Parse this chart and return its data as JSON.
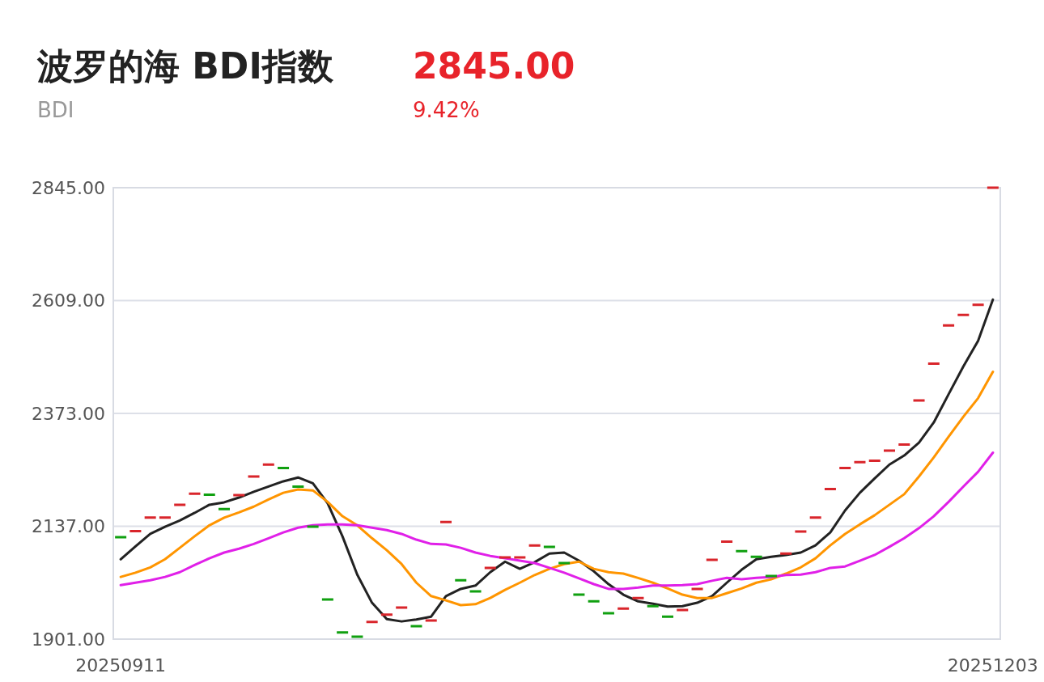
{
  "chart_data": {
    "type": "candlestick",
    "title": "波罗的海 BDI指数",
    "subtitle": "BDI",
    "annotations": [
      "2845.00",
      "9.42%"
    ],
    "categories": [
      "20250911",
      null,
      null,
      null,
      null,
      null,
      null,
      null,
      null,
      null,
      null,
      null,
      null,
      null,
      null,
      null,
      null,
      null,
      null,
      null,
      null,
      null,
      null,
      null,
      null,
      null,
      null,
      null,
      null,
      null,
      null,
      null,
      null,
      null,
      null,
      null,
      null,
      null,
      null,
      null,
      null,
      null,
      null,
      null,
      null,
      null,
      null,
      null,
      null,
      null,
      null,
      null,
      null,
      null,
      null,
      null,
      null,
      null,
      null,
      "20251203"
    ],
    "ohlc": [
      [
        2114,
        2114,
        2114,
        2114
      ],
      [
        2127,
        2127,
        2127,
        2127
      ],
      [
        2155,
        2155,
        2155,
        2155
      ],
      [
        2155,
        2155,
        2155,
        2155
      ],
      [
        2182,
        2182,
        2182,
        2182
      ],
      [
        2205,
        2205,
        2205,
        2205
      ],
      [
        2203,
        2203,
        2203,
        2203
      ],
      [
        2173,
        2173,
        2173,
        2173
      ],
      [
        2202,
        2202,
        2202,
        2202
      ],
      [
        2241,
        2241,
        2241,
        2241
      ],
      [
        2266,
        2266,
        2266,
        2266
      ],
      [
        2259,
        2259,
        2259,
        2259
      ],
      [
        2220,
        2220,
        2220,
        2220
      ],
      [
        2136,
        2136,
        2136,
        2136
      ],
      [
        1984,
        1984,
        1984,
        1984
      ],
      [
        1915,
        1915,
        1915,
        1915
      ],
      [
        1906,
        1906,
        1906,
        1906
      ],
      [
        1937,
        1937,
        1937,
        1937
      ],
      [
        1952,
        1952,
        1952,
        1952
      ],
      [
        1967,
        1967,
        1967,
        1967
      ],
      [
        1928,
        1928,
        1928,
        1928
      ],
      [
        1940,
        1940,
        1940,
        1940
      ],
      [
        2146,
        2146,
        2146,
        2146
      ],
      [
        2024,
        2024,
        2024,
        2024
      ],
      [
        2001,
        2001,
        2001,
        2001
      ],
      [
        2050,
        2050,
        2050,
        2050
      ],
      [
        2072,
        2072,
        2072,
        2072
      ],
      [
        2072,
        2072,
        2072,
        2072
      ],
      [
        2097,
        2097,
        2097,
        2097
      ],
      [
        2094,
        2094,
        2094,
        2094
      ],
      [
        2060,
        2060,
        2060,
        2060
      ],
      [
        1994,
        1994,
        1994,
        1994
      ],
      [
        1980,
        1980,
        1980,
        1980
      ],
      [
        1955,
        1955,
        1955,
        1955
      ],
      [
        1965,
        1965,
        1965,
        1965
      ],
      [
        1987,
        1987,
        1987,
        1987
      ],
      [
        1970,
        1970,
        1970,
        1970
      ],
      [
        1948,
        1948,
        1948,
        1948
      ],
      [
        1962,
        1962,
        1962,
        1962
      ],
      [
        2006,
        2006,
        2006,
        2006
      ],
      [
        2067,
        2067,
        2067,
        2067
      ],
      [
        2105,
        2105,
        2105,
        2105
      ],
      [
        2085,
        2085,
        2085,
        2085
      ],
      [
        2073,
        2073,
        2073,
        2073
      ],
      [
        2033,
        2033,
        2033,
        2033
      ],
      [
        2080,
        2080,
        2080,
        2080
      ],
      [
        2126,
        2126,
        2126,
        2126
      ],
      [
        2155,
        2155,
        2155,
        2155
      ],
      [
        2215,
        2215,
        2215,
        2215
      ],
      [
        2259,
        2259,
        2259,
        2259
      ],
      [
        2271,
        2271,
        2271,
        2271
      ],
      [
        2274,
        2274,
        2274,
        2274
      ],
      [
        2295,
        2295,
        2295,
        2295
      ],
      [
        2308,
        2308,
        2308,
        2308
      ],
      [
        2400,
        2400,
        2400,
        2400
      ],
      [
        2477,
        2477,
        2477,
        2477
      ],
      [
        2557,
        2557,
        2557,
        2557
      ],
      [
        2579,
        2579,
        2579,
        2579
      ],
      [
        2600,
        2600,
        2600,
        2600
      ],
      [
        2845,
        2845,
        2845,
        2845
      ]
    ],
    "colors": [
      "#10a010",
      "#d9252b",
      "#d9252b",
      "#d9252b",
      "#d9252b",
      "#d9252b",
      "#10a010",
      "#10a010",
      "#d9252b",
      "#d9252b",
      "#d9252b",
      "#10a010",
      "#10a010",
      "#10a010",
      "#10a010",
      "#10a010",
      "#10a010",
      "#d9252b",
      "#d9252b",
      "#d9252b",
      "#10a010",
      "#d9252b",
      "#d9252b",
      "#10a010",
      "#10a010",
      "#d9252b",
      "#d9252b",
      "#d9252b",
      "#d9252b",
      "#10a010",
      "#10a010",
      "#10a010",
      "#10a010",
      "#10a010",
      "#d9252b",
      "#d9252b",
      "#10a010",
      "#10a010",
      "#d9252b",
      "#d9252b",
      "#d9252b",
      "#d9252b",
      "#10a010",
      "#10a010",
      "#10a010",
      "#d9252b",
      "#d9252b",
      "#d9252b",
      "#d9252b",
      "#d9252b",
      "#d9252b",
      "#d9252b",
      "#d9252b",
      "#d9252b",
      "#d9252b",
      "#d9252b",
      "#d9252b",
      "#d9252b",
      "#d9252b",
      "#d9252b"
    ],
    "series": [
      {
        "type": "line",
        "color": "#222222",
        "values": [
          2068,
          2095,
          2121,
          2136,
          2149,
          2165,
          2182,
          2187,
          2197,
          2209,
          2220,
          2231,
          2239,
          2227,
          2185,
          2116,
          2036,
          1977,
          1943,
          1938,
          1942,
          1948,
          1991,
          2006,
          2013,
          2041,
          2063,
          2048,
          2062,
          2080,
          2082,
          2065,
          2043,
          2016,
          1994,
          1980,
          1975,
          1969,
          1970,
          1977,
          1991,
          2019,
          2046,
          2068,
          2073,
          2077,
          2082,
          2097,
          2124,
          2170,
          2207,
          2237,
          2266,
          2285,
          2312,
          2354,
          2413,
          2471,
          2525,
          2611
        ]
      },
      {
        "type": "line",
        "color": "#ff9500",
        "values": [
          2031,
          2040,
          2051,
          2068,
          2092,
          2116,
          2139,
          2155,
          2166,
          2178,
          2193,
          2207,
          2214,
          2212,
          2188,
          2158,
          2139,
          2112,
          2087,
          2058,
          2019,
          1991,
          1982,
          1972,
          1974,
          1987,
          2004,
          2019,
          2035,
          2048,
          2058,
          2063,
          2048,
          2041,
          2038,
          2029,
          2019,
          2007,
          1994,
          1987,
          1987,
          1997,
          2007,
          2019,
          2026,
          2038,
          2051,
          2070,
          2097,
          2121,
          2141,
          2160,
          2182,
          2204,
          2241,
          2281,
          2324,
          2366,
          2405,
          2460
        ]
      },
      {
        "type": "line",
        "color": "#e020e8",
        "values": [
          2014,
          2019,
          2024,
          2031,
          2041,
          2056,
          2070,
          2082,
          2090,
          2100,
          2112,
          2124,
          2134,
          2139,
          2141,
          2141,
          2139,
          2134,
          2129,
          2121,
          2109,
          2100,
          2099,
          2092,
          2082,
          2075,
          2070,
          2065,
          2060,
          2050,
          2040,
          2028,
          2016,
          2006,
          2006,
          2009,
          2013,
          2013,
          2014,
          2016,
          2023,
          2029,
          2026,
          2029,
          2031,
          2035,
          2036,
          2041,
          2050,
          2053,
          2065,
          2077,
          2094,
          2112,
          2133,
          2158,
          2188,
          2220,
          2251,
          2291
        ]
      }
    ],
    "ylim": [
      1901,
      2845
    ],
    "yticks": [
      {
        "value": 1901,
        "label": "1901.00"
      },
      {
        "value": 2137,
        "label": "2137.00"
      },
      {
        "value": 2373,
        "label": "2373.00"
      },
      {
        "value": 2609,
        "label": "2609.00"
      },
      {
        "value": 2845,
        "label": "2845.00"
      }
    ],
    "grid": "y"
  }
}
